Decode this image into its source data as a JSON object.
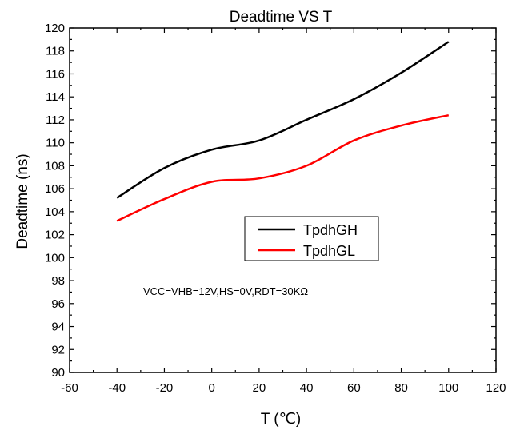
{
  "chart_data": {
    "type": "line",
    "title": "Deadtime  VS  T",
    "xlabel": "T (℃)",
    "ylabel": "Deadtime (ns)",
    "xlim": [
      -60,
      120
    ],
    "ylim": [
      90,
      120
    ],
    "xticks": [
      "-60",
      "-40",
      "-20",
      "0",
      "20",
      "40",
      "60",
      "80",
      "100",
      "120"
    ],
    "yticks": [
      "90",
      "92",
      "94",
      "96",
      "98",
      "100",
      "102",
      "104",
      "106",
      "108",
      "110",
      "112",
      "114",
      "116",
      "118",
      "120"
    ],
    "x": [
      -40,
      -20,
      0,
      20,
      40,
      60,
      80,
      100
    ],
    "series": [
      {
        "name": "TpdhGH",
        "color": "#000000",
        "values": [
          105.2,
          107.8,
          109.4,
          110.2,
          112.0,
          113.8,
          116.1,
          118.8
        ]
      },
      {
        "name": "TpdhGL",
        "color": "#ff0000",
        "values": [
          103.2,
          105.1,
          106.6,
          106.9,
          108.0,
          110.2,
          111.5,
          112.4
        ]
      }
    ],
    "annotation": "VCC=VHB=12V,HS=0V,RDT=30KΩ",
    "legend_position": "center-right",
    "grid": false
  }
}
